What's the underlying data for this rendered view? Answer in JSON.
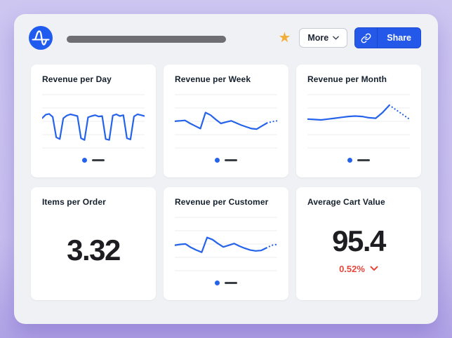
{
  "header": {
    "more_label": "More",
    "share_label": "Share",
    "favorite_icon_glyph": "★"
  },
  "colors": {
    "background_top": "#cdc6f1",
    "background_bottom": "#b1a3e6",
    "panel": "#eff1f5",
    "card": "#ffffff",
    "chart_blue": "#2563eb",
    "brand_blue": "#1f5bee",
    "share_button_blue": "#2358e8",
    "star_gold": "#f1ae39",
    "negative_red": "#e5473d",
    "legend_dash_gray": "#3a3f46",
    "title_placeholder_gray": "#6e6e73",
    "text_dark": "#15202d",
    "gridline": "#ebedf1"
  },
  "cards": [
    {
      "title": "Revenue per Day",
      "type": "line-chart"
    },
    {
      "title": "Revenue per Week",
      "type": "line-chart"
    },
    {
      "title": "Revenue per Month",
      "type": "line-chart"
    },
    {
      "title": "Items per Order",
      "type": "metric",
      "value": "3.32"
    },
    {
      "title": "Revenue per Customer",
      "type": "line-chart"
    },
    {
      "title": "Average Cart Value",
      "type": "metric",
      "value": "95.4",
      "change": "0.52%",
      "change_direction": "down"
    }
  ],
  "chart_data": [
    {
      "type": "line",
      "title": "Revenue per Day",
      "axis_labels_visible": false,
      "grid": true,
      "ylim": [
        0,
        100
      ],
      "legend": "placeholder (blue dot + gray bar)",
      "projected_tail_points": 0,
      "series": [
        {
          "values": [
            62,
            70,
            72,
            65,
            18,
            14,
            62,
            68,
            71,
            69,
            67,
            16,
            12,
            64,
            67,
            69,
            66,
            67,
            14,
            12,
            68,
            71,
            67,
            69,
            16,
            13,
            66,
            71,
            69,
            67
          ]
        }
      ]
    },
    {
      "type": "line",
      "title": "Revenue per Week",
      "axis_labels_visible": false,
      "grid": true,
      "ylim": [
        0,
        100
      ],
      "legend": "placeholder (blue dot + gray bar)",
      "projected_tail_points": 3,
      "series": [
        {
          "values": [
            55,
            56,
            57,
            50,
            44,
            38,
            75,
            69,
            59,
            50,
            53,
            56,
            51,
            46,
            42,
            38,
            37,
            44,
            51,
            54,
            56
          ]
        }
      ]
    },
    {
      "type": "line",
      "title": "Revenue per Month",
      "axis_labels_visible": false,
      "grid": true,
      "ylim": [
        0,
        100
      ],
      "legend": "placeholder (blue dot + gray bar)",
      "projected_tail_points": 4,
      "series": [
        {
          "values": [
            60,
            59,
            58,
            60,
            62,
            64,
            66,
            67,
            66,
            63,
            62,
            75,
            92,
            81,
            70,
            59
          ]
        }
      ]
    },
    {
      "type": "line",
      "title": "Revenue per Customer",
      "axis_labels_visible": false,
      "grid": true,
      "ylim": [
        0,
        100
      ],
      "legend": "placeholder (blue dot + gray bar)",
      "projected_tail_points": 3,
      "series": [
        {
          "values": [
            52,
            54,
            55,
            47,
            41,
            36,
            70,
            65,
            56,
            48,
            52,
            56,
            50,
            45,
            41,
            39,
            40,
            46,
            52,
            54
          ]
        }
      ]
    }
  ]
}
